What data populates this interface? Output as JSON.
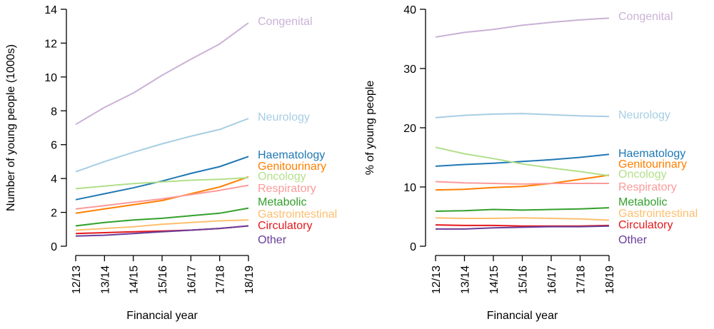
{
  "chart_data": [
    {
      "type": "line",
      "xlabel": "Financial year",
      "ylabel": "Number of young people (1000s)",
      "ylim": [
        0,
        14
      ],
      "yticks": [
        0,
        2,
        4,
        6,
        8,
        10,
        12,
        14
      ],
      "grid": false,
      "legend": "direct labels at line ends (right)",
      "categories": [
        "12/13",
        "13/14",
        "14/15",
        "15/16",
        "16/17",
        "17/18",
        "18/19"
      ],
      "series": [
        {
          "name": "Congenital",
          "color": "#cab2d6",
          "values": [
            7.2,
            8.2,
            9.05,
            10.1,
            11.05,
            11.95,
            13.2
          ]
        },
        {
          "name": "Neurology",
          "color": "#a6cee3",
          "values": [
            4.4,
            5.0,
            5.55,
            6.05,
            6.5,
            6.9,
            7.55
          ]
        },
        {
          "name": "Haematology",
          "color": "#1f78b4",
          "values": [
            2.75,
            3.1,
            3.45,
            3.85,
            4.3,
            4.7,
            5.3
          ]
        },
        {
          "name": "Genitourinary",
          "color": "#ff7f00",
          "values": [
            1.95,
            2.2,
            2.45,
            2.7,
            3.1,
            3.5,
            4.1
          ]
        },
        {
          "name": "Oncology",
          "color": "#b2df8a",
          "values": [
            3.4,
            3.55,
            3.7,
            3.8,
            3.9,
            3.95,
            4.05
          ]
        },
        {
          "name": "Respiratory",
          "color": "#fb9a99",
          "values": [
            2.2,
            2.4,
            2.6,
            2.8,
            3.05,
            3.3,
            3.6
          ]
        },
        {
          "name": "Metabolic",
          "color": "#33a02c",
          "values": [
            1.2,
            1.4,
            1.55,
            1.65,
            1.8,
            1.95,
            2.25
          ]
        },
        {
          "name": "Gastrointestinal",
          "color": "#fdbf6f",
          "values": [
            0.95,
            1.05,
            1.15,
            1.3,
            1.4,
            1.5,
            1.55
          ]
        },
        {
          "name": "Circulatory",
          "color": "#e31a1c",
          "values": [
            0.75,
            0.8,
            0.85,
            0.9,
            0.95,
            1.05,
            1.2
          ]
        },
        {
          "name": "Other",
          "color": "#6a3d9a",
          "values": [
            0.6,
            0.65,
            0.75,
            0.85,
            0.95,
            1.05,
            1.2
          ]
        }
      ]
    },
    {
      "type": "line",
      "xlabel": "Financial year",
      "ylabel": "% of young people",
      "ylim": [
        0,
        40
      ],
      "yticks": [
        0,
        10,
        20,
        30,
        40
      ],
      "grid": false,
      "legend": "direct labels at line ends (right)",
      "categories": [
        "12/13",
        "13/14",
        "14/15",
        "15/16",
        "16/17",
        "17/18",
        "18/19"
      ],
      "series": [
        {
          "name": "Congenital",
          "color": "#cab2d6",
          "values": [
            35.3,
            36.1,
            36.6,
            37.3,
            37.8,
            38.2,
            38.5
          ]
        },
        {
          "name": "Neurology",
          "color": "#a6cee3",
          "values": [
            21.7,
            22.1,
            22.3,
            22.4,
            22.2,
            22.0,
            21.9
          ]
        },
        {
          "name": "Haematology",
          "color": "#1f78b4",
          "values": [
            13.5,
            13.8,
            14.0,
            14.3,
            14.6,
            15.0,
            15.5
          ]
        },
        {
          "name": "Genitourinary",
          "color": "#ff7f00",
          "values": [
            9.5,
            9.6,
            9.9,
            10.1,
            10.6,
            11.3,
            12.0
          ]
        },
        {
          "name": "Oncology",
          "color": "#b2df8a",
          "values": [
            16.7,
            15.6,
            14.8,
            13.9,
            13.2,
            12.6,
            11.9
          ]
        },
        {
          "name": "Respiratory",
          "color": "#fb9a99",
          "values": [
            10.9,
            10.7,
            10.6,
            10.5,
            10.6,
            10.6,
            10.6
          ]
        },
        {
          "name": "Metabolic",
          "color": "#33a02c",
          "values": [
            5.9,
            6.0,
            6.2,
            6.1,
            6.2,
            6.3,
            6.5
          ]
        },
        {
          "name": "Gastrointestinal",
          "color": "#fdbf6f",
          "values": [
            4.8,
            4.7,
            4.7,
            4.8,
            4.7,
            4.6,
            4.4
          ]
        },
        {
          "name": "Circulatory",
          "color": "#e31a1c",
          "values": [
            3.6,
            3.5,
            3.5,
            3.4,
            3.4,
            3.4,
            3.5
          ]
        },
        {
          "name": "Other",
          "color": "#6a3d9a",
          "values": [
            2.9,
            2.9,
            3.1,
            3.2,
            3.3,
            3.3,
            3.4
          ]
        }
      ]
    }
  ]
}
